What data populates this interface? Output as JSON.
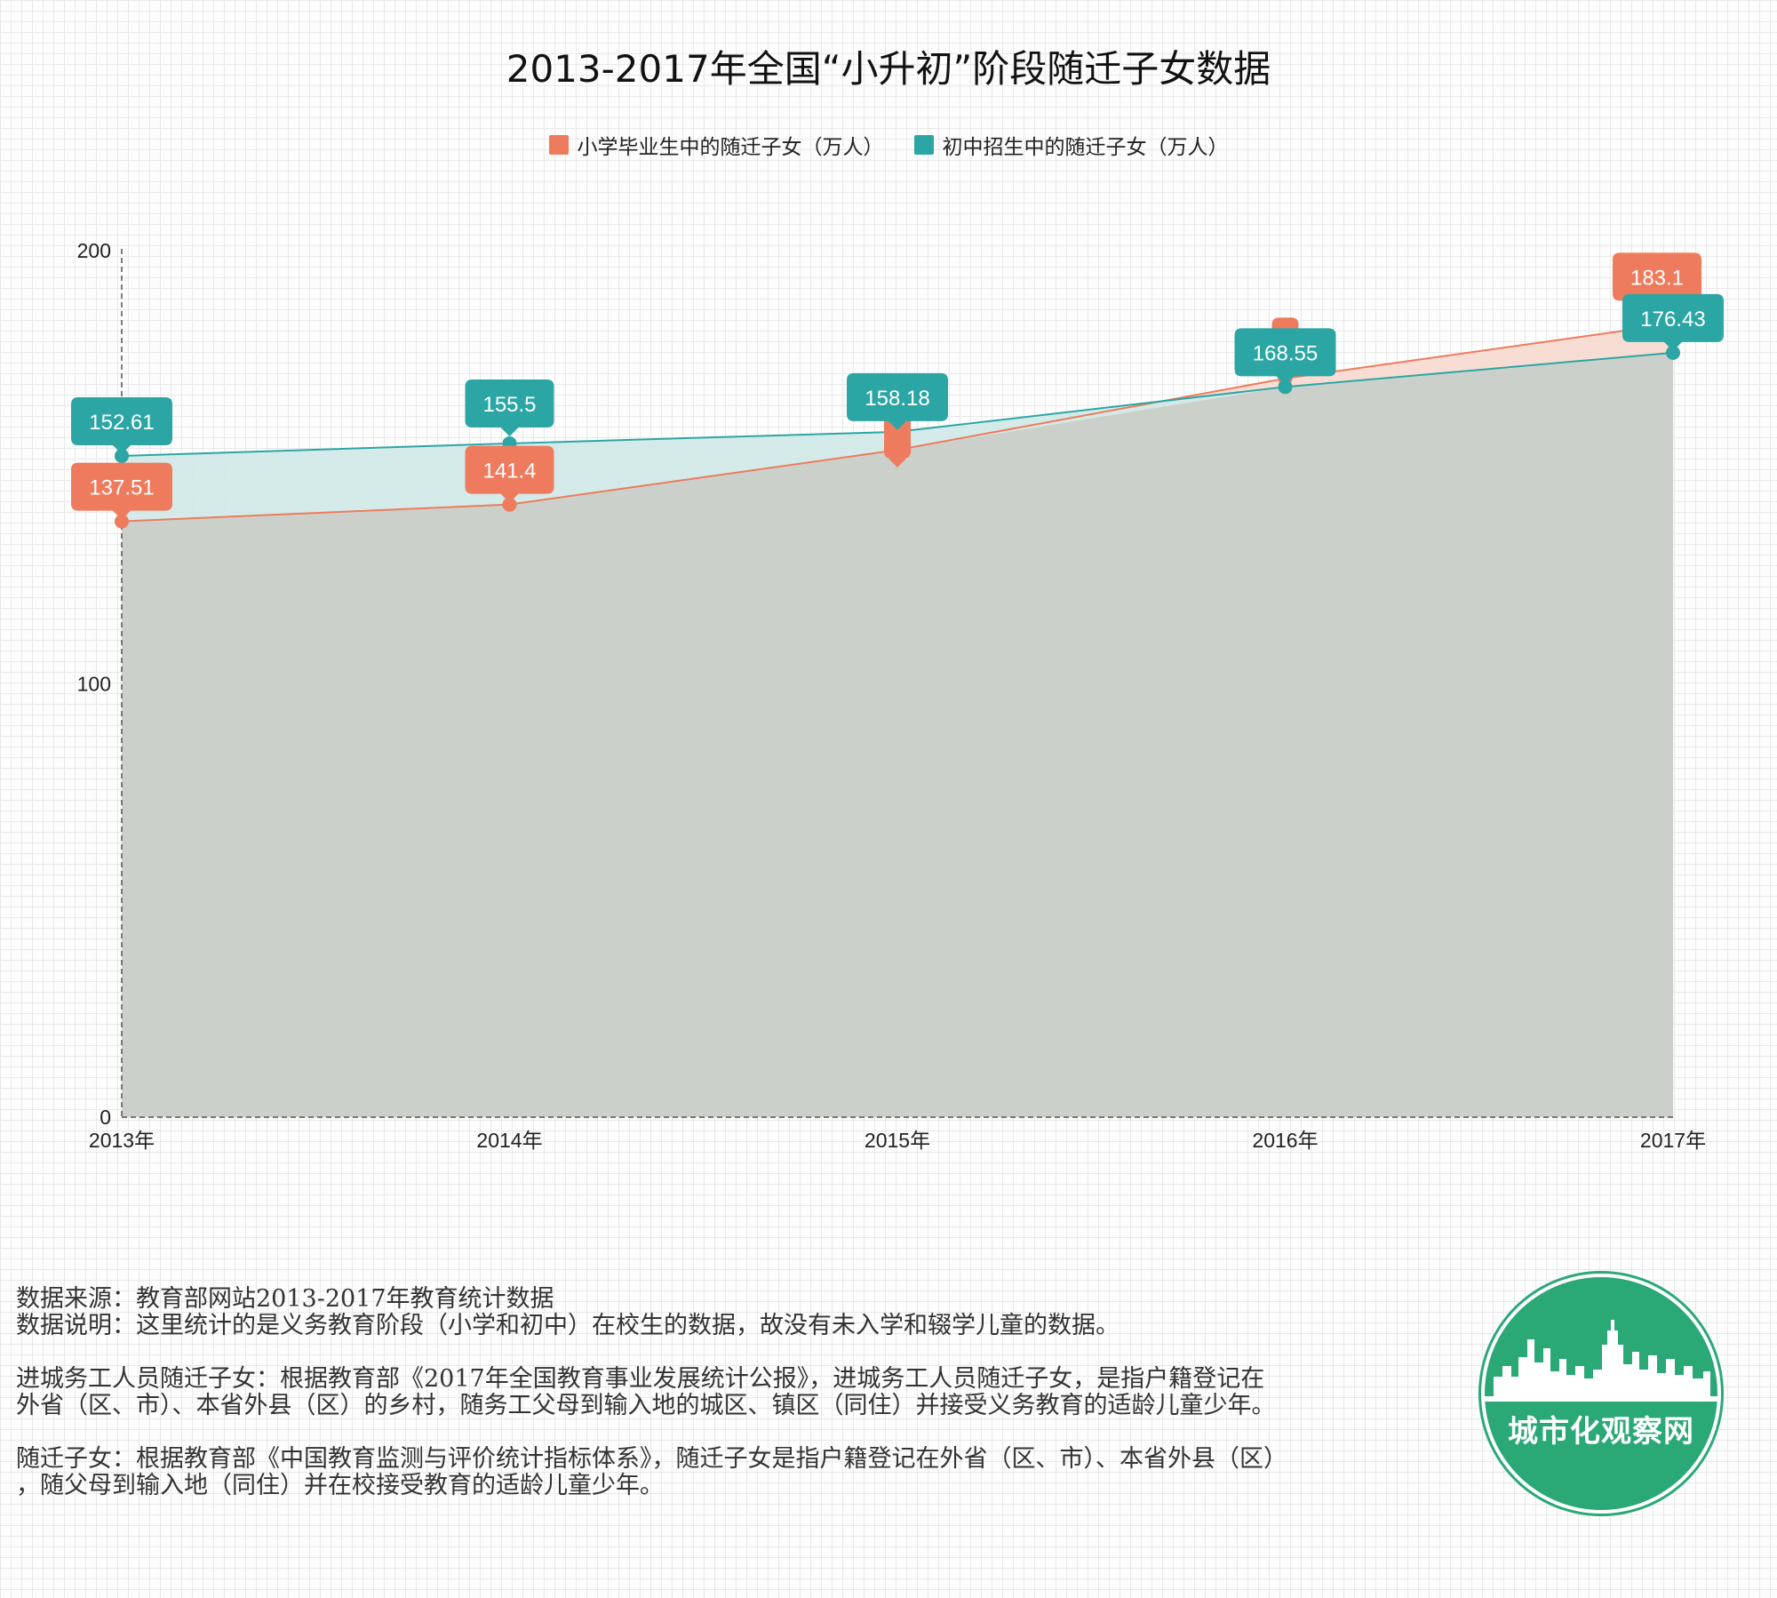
{
  "chart_data": {
    "type": "area",
    "title": "2013-2017年全国“小升初”阶段随迁子女数据",
    "categories": [
      "2013年",
      "2014年",
      "2015年",
      "2016年",
      "2017年"
    ],
    "ylim": [
      0,
      200
    ],
    "yticks": [
      "0",
      "100",
      "200"
    ],
    "grid": true,
    "legend_position": "top-center",
    "series": [
      {
        "name": "小学毕业生中的随迁子女（万人）",
        "color": "#ee7b5e",
        "fill": "#f7d9cf",
        "values": [
          137.51,
          141.4,
          154.0,
          170.5,
          183.1
        ],
        "labels": [
          "137.51",
          "141.4",
          "",
          "",
          "183.1"
        ]
      },
      {
        "name": "初中招生中的随迁子女（万人）",
        "color": "#2ca6a4",
        "fill": "#cfe9e7",
        "values": [
          152.61,
          155.5,
          158.18,
          168.55,
          176.43
        ],
        "labels": [
          "152.61",
          "155.5",
          "158.18",
          "168.55",
          "176.43"
        ]
      }
    ]
  },
  "notes": {
    "line1": "数据来源：教育部网站2013-2017年教育统计数据",
    "line2": "数据说明：这里统计的是义务教育阶段（小学和初中）在校生的数据，故没有未入学和辍学儿童的数据。",
    "line3": "进城务工人员随迁子女：根据教育部《2017年全国教育事业发展统计公报》，进城务工人员随迁子女，是指户籍登记在",
    "line4": "外省（区、市）、本省外县（区）的乡村，随务工父母到输入地的城区、镇区（同住）并接受义务教育的适龄儿童少年。",
    "line5": "随迁子女：根据教育部《中国教育监测与评价统计指标体系》，随迁子女是指户籍登记在外省（区、市）、本省外县（区）",
    "line6": "，随父母到输入地（同住）并在校接受教育的适龄儿童少年。"
  },
  "logo": {
    "text": "城市化观察网",
    "color": "#2aa876"
  }
}
